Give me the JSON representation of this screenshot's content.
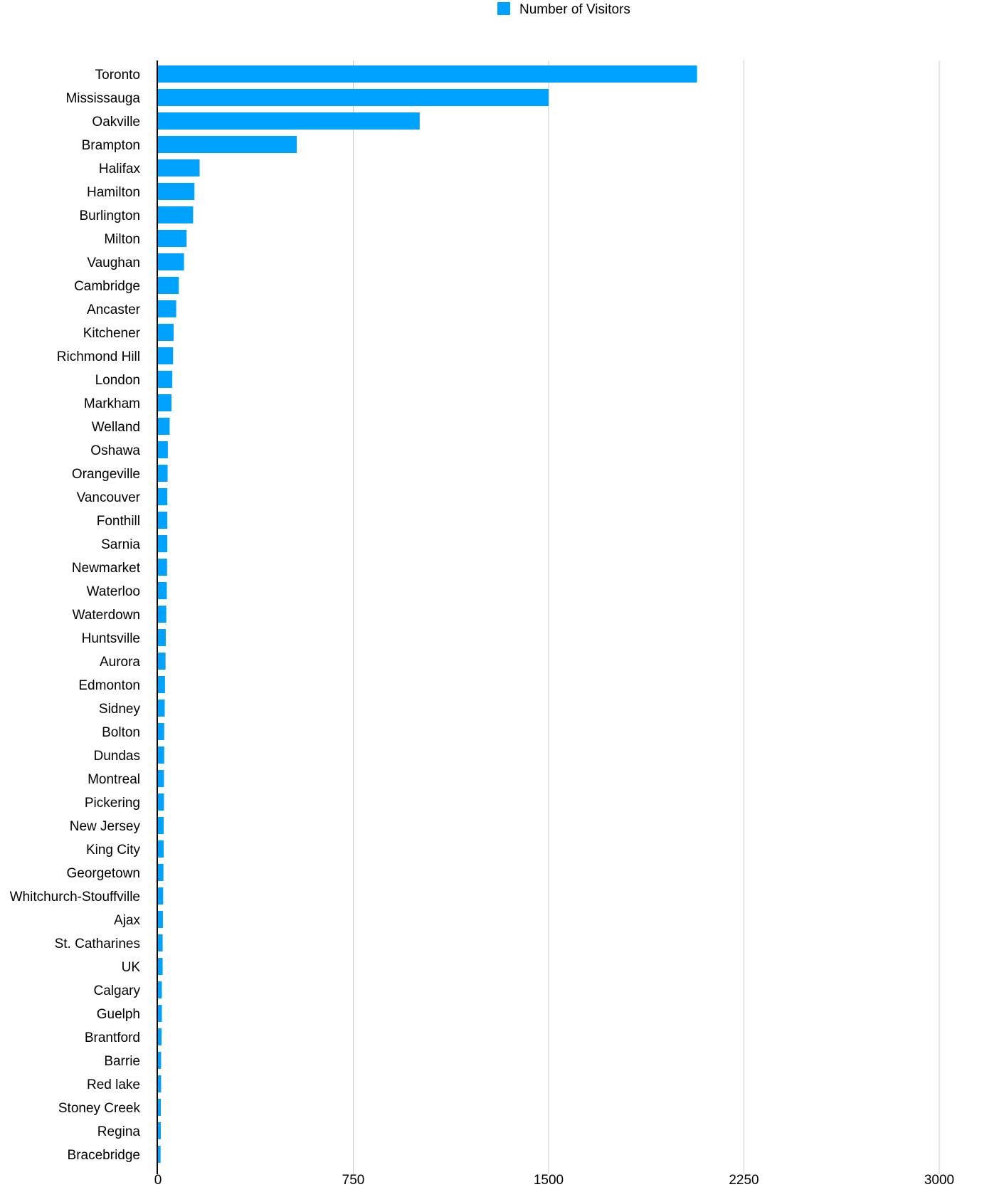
{
  "legend": {
    "label": "Number of Visitors",
    "placement": "top-center"
  },
  "chart_data": {
    "type": "bar",
    "orientation": "horizontal",
    "title": "",
    "xlabel": "",
    "ylabel": "",
    "xlim": [
      0,
      3000
    ],
    "x_ticks": [
      "0",
      "750",
      "1500",
      "2250",
      "3000"
    ],
    "x_tick_values": [
      0,
      750,
      1500,
      2250,
      3000
    ],
    "grid": true,
    "legend_placement": "top-center",
    "bar_color": "#00A2FF",
    "categories": [
      "Toronto",
      "Mississauga",
      "Oakville",
      "Brampton",
      "Halifax",
      "Hamilton",
      "Burlington",
      "Milton",
      "Vaughan",
      "Cambridge",
      "Ancaster",
      "Kitchener",
      "Richmond Hill",
      "London",
      "Markham",
      "Welland",
      "Oshawa",
      "Orangeville",
      "Vancouver",
      "Fonthill",
      "Sarnia",
      "Newmarket",
      "Waterloo",
      "Waterdown",
      "Huntsville",
      "Aurora",
      "Edmonton",
      "Sidney",
      "Bolton",
      "Dundas",
      "Montreal",
      "Pickering",
      "New Jersey",
      "King City",
      "Georgetown",
      "Whitchurch-Stouffville",
      "Ajax",
      "St. Catharines",
      "UK",
      "Calgary",
      "Guelph",
      "Brantford",
      "Barrie",
      "Red lake",
      "Stoney Creek",
      "Regina",
      "Bracebridge"
    ],
    "series": [
      {
        "name": "Number of Visitors",
        "color": "#00A2FF",
        "values": [
          2070,
          1500,
          1005,
          533,
          160,
          140,
          135,
          110,
          100,
          80,
          70,
          60,
          58,
          55,
          52,
          45,
          38,
          37,
          36,
          36,
          36,
          35,
          34,
          32,
          30,
          29,
          27,
          26,
          24,
          24,
          23,
          23,
          22,
          22,
          21,
          20,
          19,
          18,
          18,
          15,
          15,
          14,
          12,
          12,
          11,
          11,
          10
        ]
      }
    ]
  }
}
